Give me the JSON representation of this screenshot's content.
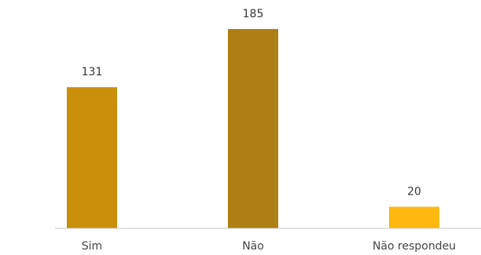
{
  "chart_data": {
    "type": "bar",
    "categories": [
      "Sim",
      "Não",
      "Não respondeu"
    ],
    "values": [
      131,
      185,
      20
    ],
    "colors": [
      "#C98E0A",
      "#AD7F14",
      "#FFB80F"
    ],
    "ylim": [
      0,
      185
    ],
    "grid": false,
    "legend": "none",
    "value_labels": [
      "131",
      "185",
      "20"
    ]
  }
}
